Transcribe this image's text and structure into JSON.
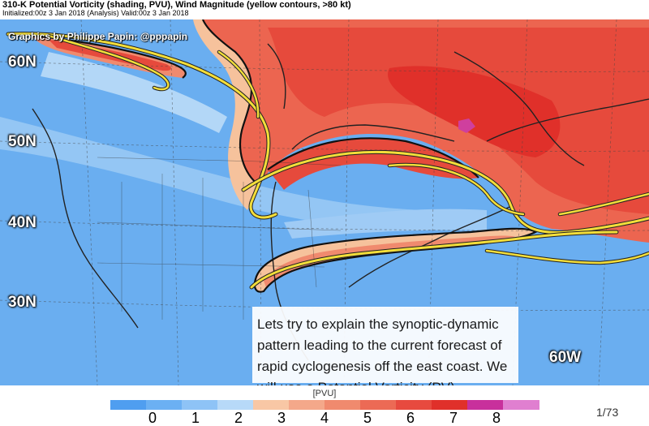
{
  "header": {
    "title": "310-K Potential Vorticity (shading, PVU), Wind Magnitude (yellow contours, >80 kt)",
    "subtitle": "Initialized:00z 3 Jan 2018 (Analysis) Valid:00z 3 Jan 2018"
  },
  "map": {
    "credit": "Graphics by Philippe Papin: @pppapin",
    "lat_labels": [
      "60N",
      "50N",
      "40N",
      "30N"
    ],
    "lon_label": "60W",
    "colors": {
      "low_pv": "#6aaef0",
      "mid_pv": "#b3d7f7",
      "pv2": "#f6c29c",
      "pv4": "#f08a6e",
      "pv5": "#ec6550",
      "pv6": "#e64a3c",
      "pv7": "#cf3f9e",
      "jet": "#f3de3a"
    }
  },
  "caption": {
    "text": "Lets try to explain the synoptic-dynamic pattern leading to the current forecast of rapid cyclogenesis off the east coast. We will use a Potential Vorticity (PV) perspective in this animation"
  },
  "legend": {
    "title": "[PVU]",
    "ticks": [
      "0",
      "1",
      "2",
      "3",
      "4",
      "5",
      "6",
      "7",
      "8"
    ],
    "segments": [
      "#4f9ef0",
      "#6bb0f3",
      "#8ec3f6",
      "#b7d9f8",
      "#f8c7a5",
      "#f4a88a",
      "#f08a6e",
      "#ec6a55",
      "#e74a3f",
      "#e0302a",
      "#c8309c",
      "#e07fd0"
    ]
  },
  "frame_counter": "1/73"
}
